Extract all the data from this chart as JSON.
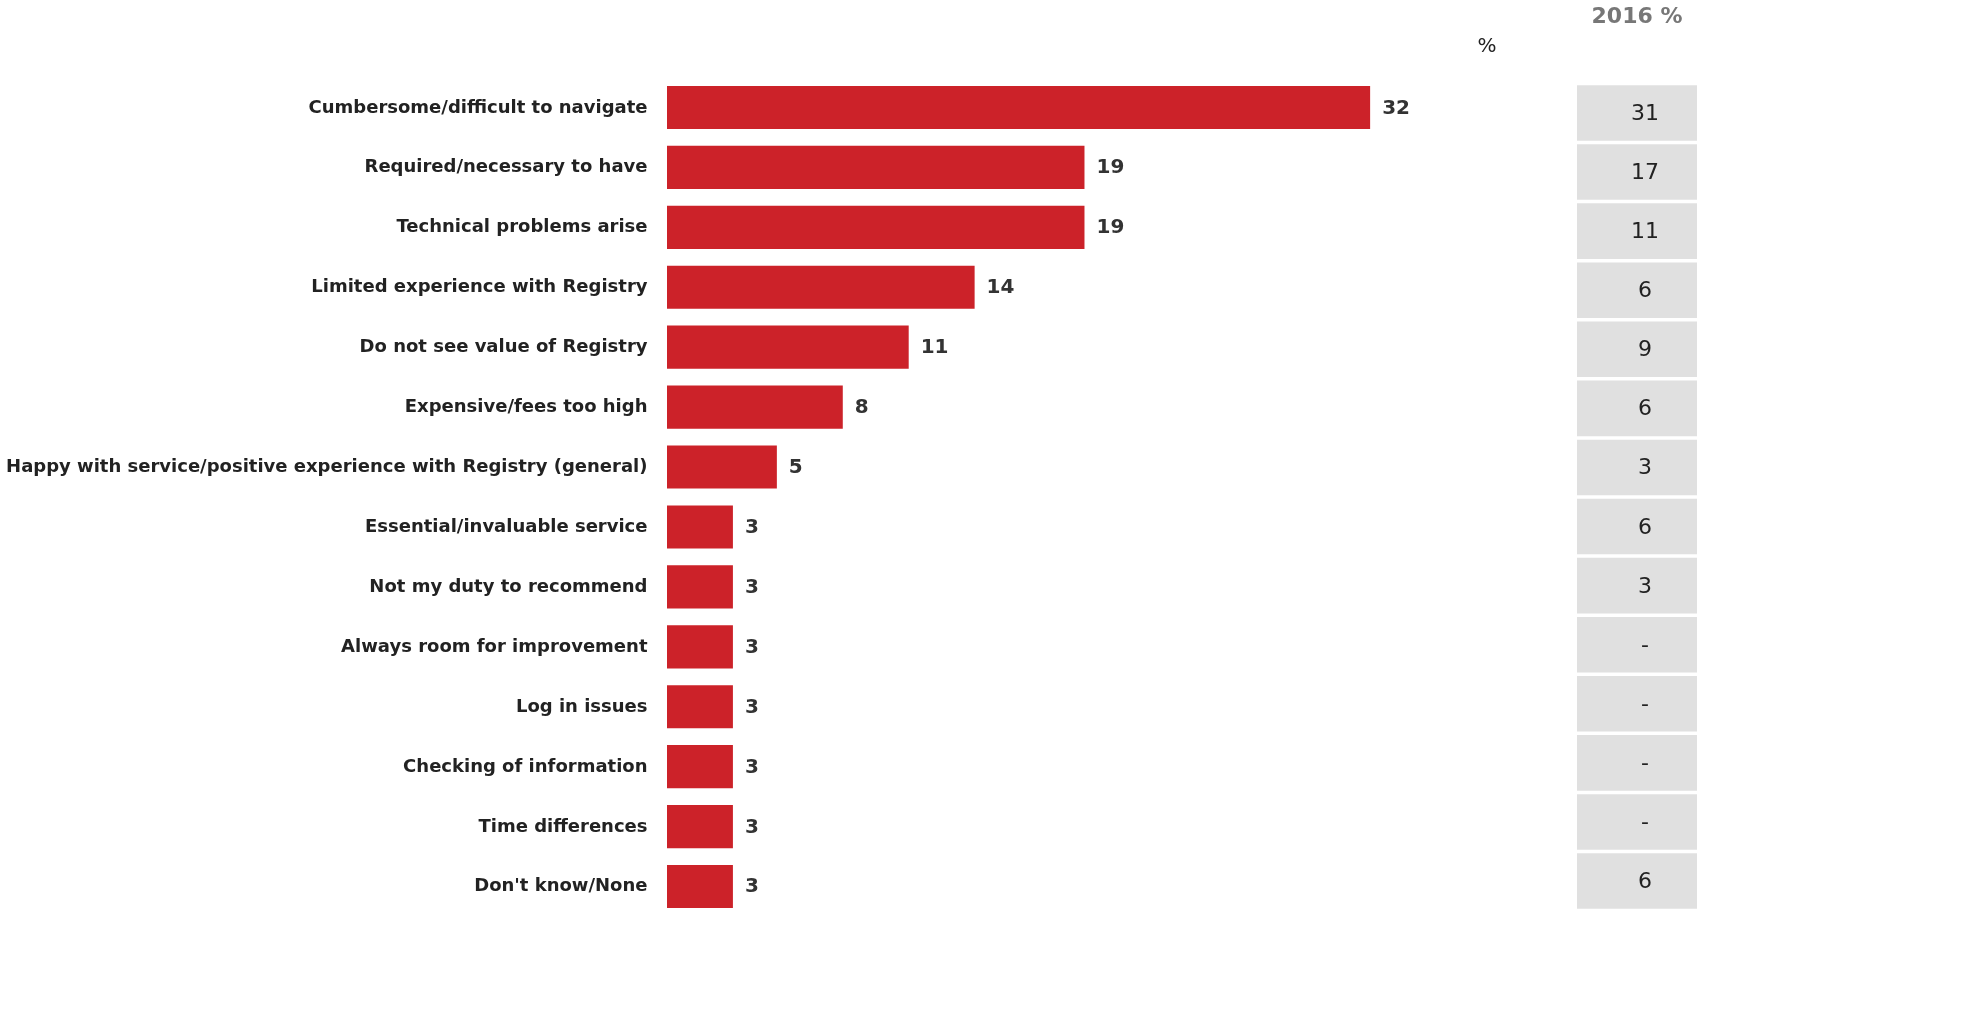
{
  "chart_data": [
    {
      "type": "bar",
      "orientation": "horizontal",
      "xlabel": "%",
      "data_labels": true,
      "grid": false,
      "tick_labels": "y",
      "categories": [
        "Cumbersome/difficult to navigate",
        "Required/necessary to have",
        "Technical problems arise",
        "Limited experience with Registry",
        "Do not see value of Registry",
        "Expensive/fees too high",
        "Happy with service/positive experience with Registry (general)",
        "Essential/invaluable service",
        "Not my duty to recommend",
        "Always room for improvement",
        "Log in issues",
        "Checking of information",
        "Time differences",
        "Don't know/None"
      ],
      "values": [
        32,
        19,
        19,
        14,
        11,
        8,
        5,
        3,
        3,
        3,
        3,
        3,
        3,
        3
      ],
      "color": "#cc2229"
    },
    {
      "type": "other",
      "title": "2016 %",
      "annotations": [
        "31",
        "17",
        "11",
        "6",
        "9",
        "6",
        "3",
        "6",
        "3",
        "-",
        "-",
        "-",
        "-",
        "6"
      ]
    }
  ]
}
